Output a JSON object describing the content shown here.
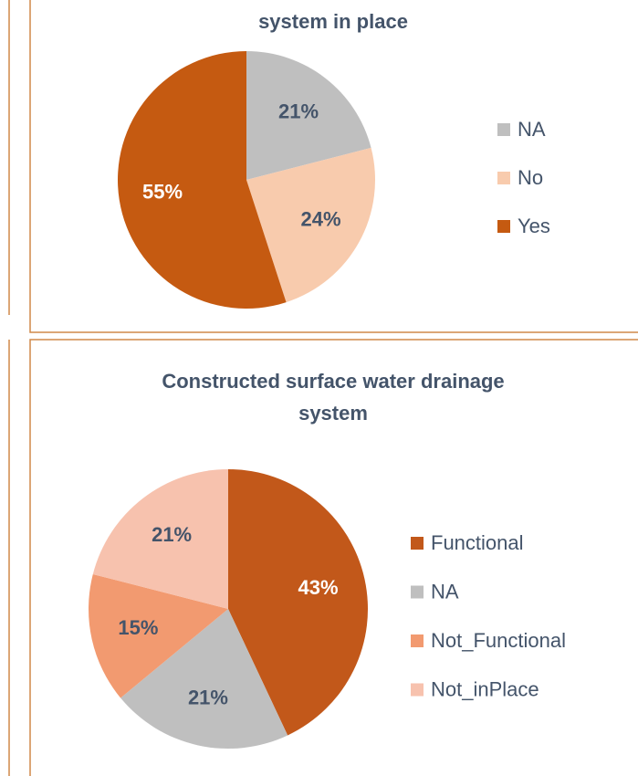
{
  "chart_data": [
    {
      "type": "pie",
      "title": "system in place",
      "categories": [
        "NA",
        "No",
        "Yes"
      ],
      "values": [
        21,
        24,
        55
      ],
      "value_labels": [
        "21%",
        "24%",
        "55%"
      ],
      "colors": [
        "#bfbfbf",
        "#f8cbad",
        "#c55a11"
      ]
    },
    {
      "type": "pie",
      "title": "Constructed surface water drainage system",
      "categories": [
        "Functional",
        "NA",
        "Not_Functional",
        "Not_inPlace"
      ],
      "values": [
        43,
        21,
        15,
        21
      ],
      "value_labels": [
        "43%",
        "21%",
        "15%",
        "21%"
      ],
      "colors": [
        "#c2581a",
        "#bfbfbf",
        "#f29a70",
        "#f7c2ae"
      ]
    }
  ]
}
